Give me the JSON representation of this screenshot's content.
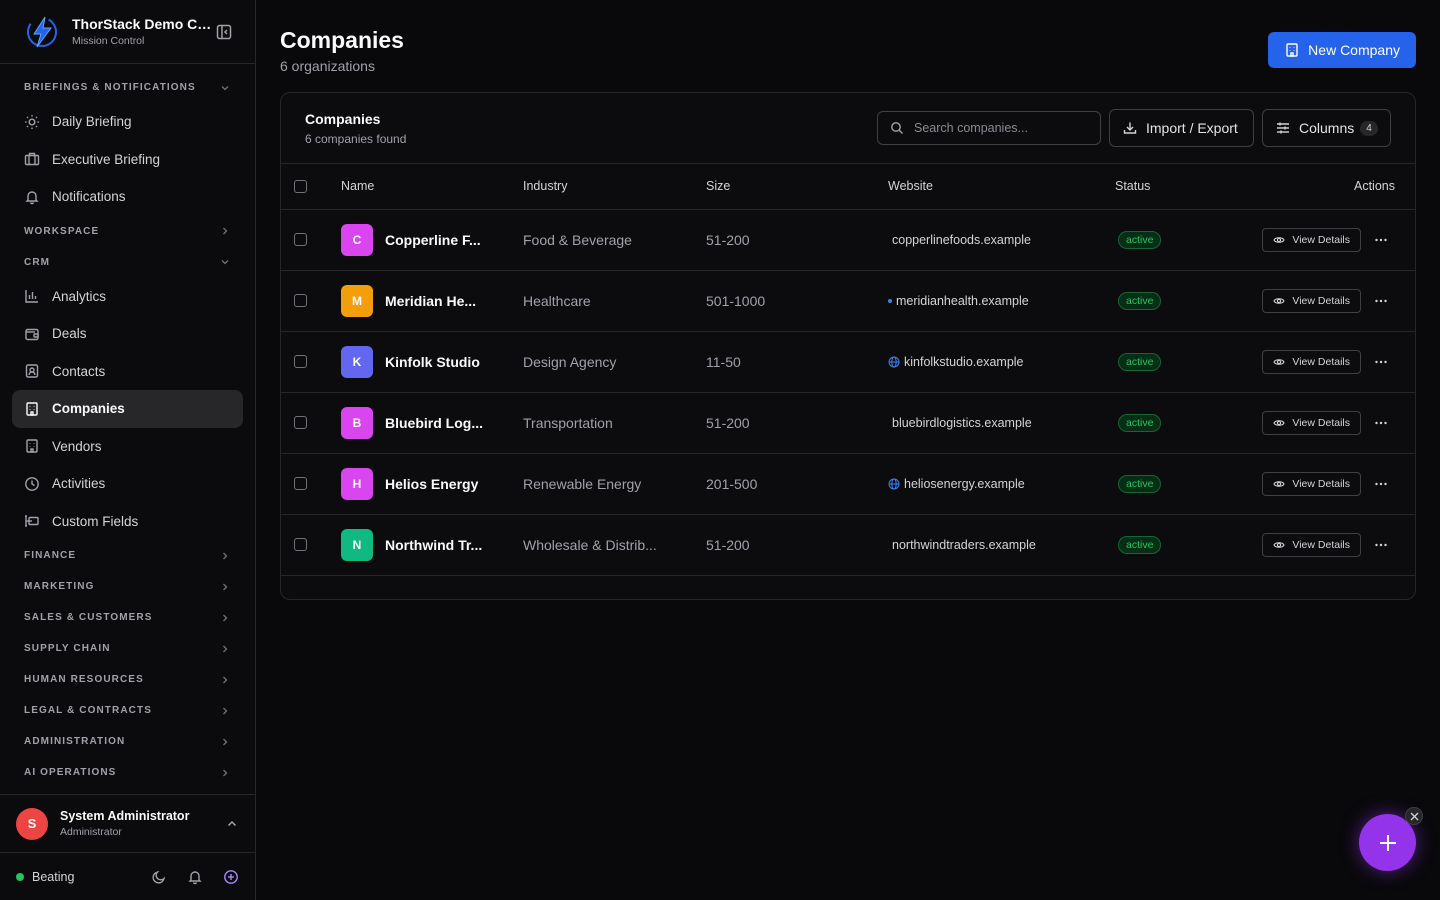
{
  "org": {
    "name": "ThorStack Demo Company",
    "subtitle": "Mission Control"
  },
  "sidebar": {
    "sections": [
      {
        "label": "BRIEFINGS & NOTIFICATIONS",
        "expanded": true,
        "items": [
          {
            "label": "Daily Briefing",
            "icon": "sun-icon"
          },
          {
            "label": "Executive Briefing",
            "icon": "briefcase-icon"
          },
          {
            "label": "Notifications",
            "icon": "bell-icon"
          }
        ]
      },
      {
        "label": "WORKSPACE",
        "expanded": false
      },
      {
        "label": "CRM",
        "expanded": true,
        "items": [
          {
            "label": "Analytics",
            "icon": "bar-chart-icon"
          },
          {
            "label": "Deals",
            "icon": "wallet-icon"
          },
          {
            "label": "Contacts",
            "icon": "contact-icon"
          },
          {
            "label": "Companies",
            "icon": "building-icon",
            "active": true
          },
          {
            "label": "Vendors",
            "icon": "building-icon"
          },
          {
            "label": "Activities",
            "icon": "clock-icon"
          },
          {
            "label": "Custom Fields",
            "icon": "custom-fields-icon"
          }
        ]
      },
      {
        "label": "FINANCE"
      },
      {
        "label": "MARKETING"
      },
      {
        "label": "SALES & CUSTOMERS"
      },
      {
        "label": "SUPPLY CHAIN"
      },
      {
        "label": "HUMAN RESOURCES"
      },
      {
        "label": "LEGAL & CONTRACTS"
      },
      {
        "label": "ADMINISTRATION"
      },
      {
        "label": "AI OPERATIONS"
      }
    ]
  },
  "user": {
    "initial": "S",
    "name": "System Administrator",
    "role": "Administrator"
  },
  "footer": {
    "status": "Beating"
  },
  "page": {
    "title": "Companies",
    "subtitle": "6 organizations",
    "new_button": "New Company"
  },
  "card": {
    "title": "Companies",
    "subtitle": "6 companies found",
    "search_placeholder": "Search companies...",
    "import_label": "Import / Export",
    "columns_label": "Columns",
    "columns_count": "4"
  },
  "table": {
    "headers": {
      "name": "Name",
      "industry": "Industry",
      "size": "Size",
      "website": "Website",
      "status": "Status",
      "actions": "Actions"
    },
    "view_label": "View Details",
    "rows": [
      {
        "initial": "C",
        "color": "#d946ef",
        "name": "Copperline F...",
        "industry": "Food & Beverage",
        "size": "51-200",
        "website": "copperlinefoods.example",
        "web_icon": "none",
        "status": "active"
      },
      {
        "initial": "M",
        "color": "#f59e0b",
        "name": "Meridian He...",
        "industry": "Healthcare",
        "size": "501-1000",
        "website": "meridianhealth.example",
        "web_icon": "dot",
        "status": "active"
      },
      {
        "initial": "K",
        "color": "#6366f1",
        "name": "Kinfolk Studio",
        "industry": "Design Agency",
        "size": "11-50",
        "website": "kinfolkstudio.example",
        "web_icon": "globe",
        "status": "active"
      },
      {
        "initial": "B",
        "color": "#d946ef",
        "name": "Bluebird Log...",
        "industry": "Transportation",
        "size": "51-200",
        "website": "bluebirdlogistics.example",
        "web_icon": "none",
        "status": "active"
      },
      {
        "initial": "H",
        "color": "#d946ef",
        "name": "Helios Energy",
        "industry": "Renewable Energy",
        "size": "201-500",
        "website": "heliosenergy.example",
        "web_icon": "globe",
        "status": "active"
      },
      {
        "initial": "N",
        "color": "#10b981",
        "name": "Northwind Tr...",
        "industry": "Wholesale & Distrib...",
        "size": "51-200",
        "website": "northwindtraders.example",
        "web_icon": "none",
        "status": "active"
      }
    ]
  }
}
